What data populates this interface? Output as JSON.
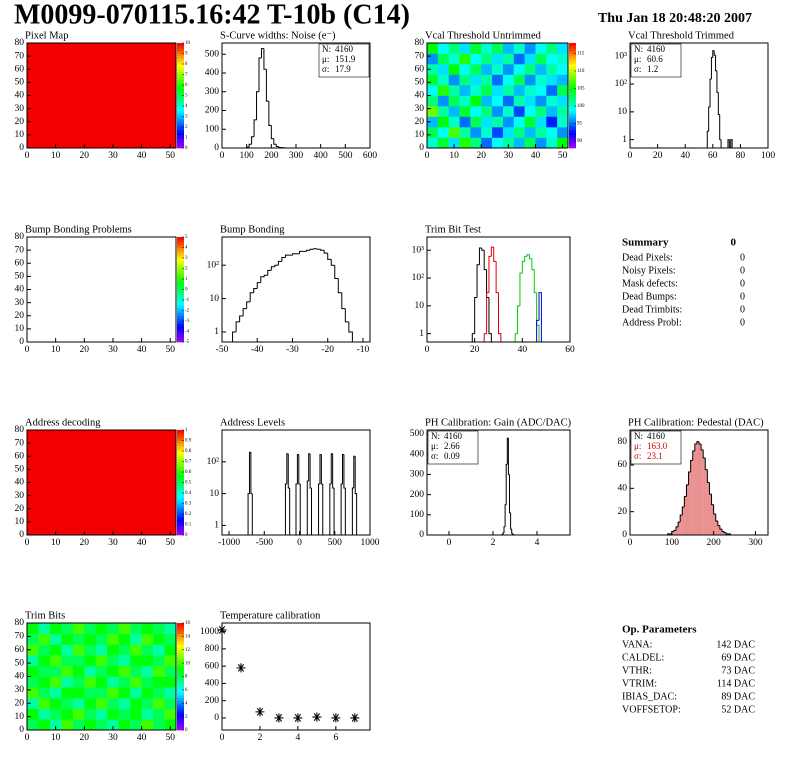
{
  "header": {
    "title": "M0099-070115.16:42 T-10b (C14)",
    "date": "Thu Jan 18 20:48:20 2007"
  },
  "chart_data": [
    {
      "type": "heatmap",
      "title": "Pixel Map",
      "xlim": [
        0,
        52
      ],
      "ylim": [
        0,
        80
      ],
      "xticks": [
        0,
        10,
        20,
        30,
        40,
        50
      ],
      "yticks": [
        0,
        10,
        20,
        30,
        40,
        50,
        60,
        70,
        80
      ],
      "z": [
        [
          10
        ]
      ],
      "zlim": [
        0,
        10
      ],
      "zticks": [
        0,
        1,
        2,
        3,
        4,
        5,
        6,
        7,
        8,
        9,
        10
      ]
    },
    {
      "type": "histogram",
      "title": "S-Curve widths: Noise (e⁻)",
      "xlim": [
        0,
        600
      ],
      "ylim": [
        0,
        560
      ],
      "xticks": [
        0,
        100,
        200,
        300,
        400,
        500,
        600
      ],
      "yticks": [
        0,
        100,
        200,
        300,
        400,
        500
      ],
      "stats_corner": "top-right",
      "stats": [
        {
          "name": "N:",
          "value": 4160
        },
        {
          "name": "μ:",
          "value": 151.9
        },
        {
          "name": "σ:",
          "value": 17.9
        }
      ],
      "series": [
        {
          "color": "#000000",
          "bins": [
            100,
            110,
            120,
            130,
            140,
            150,
            160,
            170,
            180,
            190,
            200,
            210,
            220,
            230,
            240,
            250,
            260
          ],
          "values": [
            5,
            20,
            60,
            150,
            300,
            480,
            530,
            420,
            250,
            120,
            50,
            20,
            8,
            3,
            2,
            1
          ]
        }
      ]
    },
    {
      "type": "heatmap",
      "title": "Vcal Threshold Untrimmed",
      "xlim": [
        0,
        52
      ],
      "ylim": [
        0,
        80
      ],
      "xticks": [
        0,
        10,
        20,
        30,
        40,
        50
      ],
      "yticks": [
        0,
        10,
        20,
        30,
        40,
        50,
        60,
        70,
        80
      ],
      "zlim": [
        88,
        118
      ],
      "zticks": [
        90,
        95,
        100,
        105,
        110,
        115
      ],
      "z": [
        [
          100,
          104,
          98,
          106,
          102,
          95,
          99,
          101,
          97,
          103,
          96,
          100,
          105
        ],
        [
          103,
          99,
          107,
          101,
          96,
          100,
          94,
          98,
          102,
          97,
          101,
          99,
          96
        ],
        [
          97,
          105,
          100,
          95,
          103,
          98,
          101,
          96,
          99,
          104,
          98,
          93,
          100
        ],
        [
          108,
          101,
          97,
          104,
          99,
          102,
          96,
          100,
          94,
          99,
          102,
          97,
          101
        ],
        [
          102,
          96,
          103,
          100,
          105,
          97,
          99,
          95,
          101,
          98,
          96,
          100,
          98
        ],
        [
          99,
          106,
          101,
          97,
          100,
          103,
          98,
          101,
          97,
          100,
          99,
          95,
          103
        ],
        [
          104,
          100,
          96,
          102,
          98,
          101,
          95,
          99,
          103,
          96,
          100,
          98,
          97
        ],
        [
          101,
          98,
          105,
          99,
          103,
          97,
          100,
          96,
          99,
          102,
          97,
          101,
          99
        ],
        [
          96,
          103,
          100,
          106,
          99,
          102,
          98,
          101,
          95,
          98,
          103,
          99,
          100
        ],
        [
          105,
          99,
          102,
          98,
          104,
          100,
          103,
          97,
          100,
          96,
          99,
          102,
          98
        ]
      ]
    },
    {
      "type": "histogram",
      "title": "Vcal Threshold Trimmed",
      "xlim": [
        0,
        100
      ],
      "ylim": [
        0.5,
        3000
      ],
      "ylog": true,
      "xticks": [
        0,
        20,
        40,
        60,
        80,
        100
      ],
      "yticks": [
        1,
        10,
        {
          "value": 100,
          "label": "10²"
        },
        {
          "value": 1000,
          "label": "10³"
        }
      ],
      "stats_corner": "top-left",
      "stats": [
        {
          "name": "N:",
          "value": 4160
        },
        {
          "name": "μ:",
          "value": 60.6
        },
        {
          "name": "σ:",
          "value": 1.2
        }
      ],
      "series": [
        {
          "color": "#000000",
          "bins": [
            56,
            57,
            58,
            59,
            60,
            61,
            62,
            63,
            64,
            65,
            66,
            67,
            68,
            69,
            70,
            71,
            72,
            73,
            74
          ],
          "values": [
            2,
            15,
            150,
            900,
            1600,
            1100,
            300,
            50,
            8,
            1,
            0,
            0,
            0,
            0,
            0,
            1,
            0,
            1
          ]
        }
      ]
    },
    {
      "type": "heatmap",
      "title": "Bump Bonding Problems",
      "xlim": [
        0,
        52
      ],
      "ylim": [
        0,
        80
      ],
      "xticks": [
        0,
        10,
        20,
        30,
        40,
        50
      ],
      "yticks": [
        0,
        10,
        20,
        30,
        40,
        50,
        60,
        70,
        80
      ],
      "z": [],
      "zlim": [
        -5,
        5
      ],
      "zticks": [
        -5,
        -4,
        -3,
        -2,
        -1,
        0,
        1,
        2,
        3,
        4,
        5
      ]
    },
    {
      "type": "histogram",
      "title": "Bump Bonding",
      "xlim": [
        -50,
        -8
      ],
      "ylim": [
        0.5,
        700
      ],
      "ylog": true,
      "xticks": [
        -50,
        -40,
        -30,
        -20,
        -10
      ],
      "yticks": [
        1,
        10,
        {
          "value": 100,
          "label": "10²"
        }
      ],
      "series": [
        {
          "color": "#000000",
          "bins": [
            -47,
            -46,
            -45,
            -44,
            -43,
            -42,
            -41,
            -40,
            -39,
            -38,
            -37,
            -36,
            -35,
            -34,
            -33,
            -32,
            -31,
            -30,
            -29,
            -28,
            -27,
            -26,
            -25,
            -24,
            -23,
            -22,
            -21,
            -20,
            -19,
            -18,
            -17,
            -16,
            -15,
            -14,
            -13
          ],
          "values": [
            1,
            2,
            3,
            5,
            8,
            15,
            20,
            30,
            45,
            50,
            70,
            90,
            100,
            130,
            170,
            200,
            200,
            220,
            220,
            260,
            260,
            280,
            300,
            310,
            300,
            280,
            230,
            150,
            100,
            40,
            15,
            5,
            2,
            1
          ]
        }
      ]
    },
    {
      "type": "histogram",
      "title": "Trim Bit Test",
      "xlim": [
        0,
        60
      ],
      "ylim": [
        0.5,
        3000
      ],
      "ylog": true,
      "xticks": [
        0,
        20,
        40,
        60
      ],
      "yticks": [
        1,
        10,
        {
          "value": 100,
          "label": "10²"
        },
        {
          "value": 1000,
          "label": "10³"
        }
      ],
      "series": [
        {
          "color": "#000000",
          "bins": [
            19,
            20,
            21,
            22,
            23,
            24,
            25,
            26,
            27
          ],
          "values": [
            1,
            20,
            300,
            1200,
            1000,
            200,
            20,
            1
          ]
        },
        {
          "color": "#dd0000",
          "bins": [
            24,
            25,
            26,
            27,
            28,
            29,
            30,
            31
          ],
          "values": [
            1,
            30,
            600,
            1300,
            400,
            30,
            1
          ]
        },
        {
          "color": "#00cc00",
          "bins": [
            37,
            38,
            39,
            40,
            41,
            42,
            43,
            44,
            45,
            46,
            47
          ],
          "values": [
            1,
            10,
            150,
            400,
            600,
            700,
            500,
            200,
            30,
            2
          ]
        },
        {
          "color": "#0000dd",
          "bins": [
            46,
            47,
            48
          ],
          "values": [
            3,
            30
          ]
        }
      ]
    },
    {
      "type": "heatmap",
      "title": "Address decoding",
      "xlim": [
        0,
        52
      ],
      "ylim": [
        0,
        80
      ],
      "xticks": [
        0,
        10,
        20,
        30,
        40,
        50
      ],
      "yticks": [
        0,
        10,
        20,
        30,
        40,
        50,
        60,
        70,
        80
      ],
      "z": [
        [
          1
        ]
      ],
      "zlim": [
        0,
        1
      ],
      "zticks": [
        0,
        0.1,
        0.2,
        0.3,
        0.4,
        0.5,
        0.6,
        0.7,
        0.8,
        0.9,
        1
      ]
    },
    {
      "type": "histogram",
      "title": "Address Levels",
      "xlim": [
        -1100,
        1000
      ],
      "ylim": [
        0.5,
        1000
      ],
      "ylog": true,
      "xticks": [
        -1000,
        -500,
        0,
        500,
        1000
      ],
      "yticks": [
        1,
        10,
        {
          "value": 100,
          "label": "10²"
        }
      ],
      "series": [
        {
          "color": "#000000",
          "bins": [
            -730,
            -710,
            -690,
            -670,
            -200,
            -180,
            -160,
            -140,
            -50,
            -30,
            -10,
            10,
            110,
            130,
            150,
            170,
            270,
            290,
            310,
            330,
            430,
            450,
            470,
            490,
            590,
            610,
            630,
            650,
            750,
            770,
            790,
            810
          ],
          "values": [
            10,
            200,
            10,
            0,
            20,
            180,
            15,
            0,
            20,
            170,
            20,
            0,
            25,
            180,
            15,
            0,
            20,
            170,
            20,
            0,
            20,
            180,
            15,
            0,
            20,
            170,
            15,
            0,
            15,
            150,
            10
          ]
        }
      ]
    },
    {
      "type": "histogram",
      "title": "PH Calibration: Gain (ADC/DAC)",
      "xlim": [
        -1,
        5.5
      ],
      "ylim": [
        0,
        520
      ],
      "xticks": [
        0,
        2,
        4
      ],
      "yticks": [
        0,
        100,
        200,
        300,
        400,
        500
      ],
      "stats_corner": "top-left",
      "stats": [
        {
          "name": "N:",
          "value": 4160
        },
        {
          "name": "μ:",
          "value": 2.66
        },
        {
          "name": "σ:",
          "value": 0.09
        }
      ],
      "series": [
        {
          "color": "#000000",
          "bins": [
            2.4,
            2.45,
            2.5,
            2.55,
            2.6,
            2.65,
            2.7,
            2.75,
            2.8,
            2.85,
            2.9,
            2.95
          ],
          "values": [
            2,
            10,
            40,
            150,
            350,
            480,
            300,
            110,
            30,
            8,
            2
          ]
        }
      ]
    },
    {
      "type": "histogram",
      "title": "PH Calibration: Pedestal (DAC)",
      "xlim": [
        0,
        330
      ],
      "ylim": [
        0,
        90
      ],
      "xticks": [
        0,
        100,
        200,
        300
      ],
      "yticks": [
        0,
        20,
        40,
        60,
        80
      ],
      "stats_corner": "top-left",
      "stats": [
        {
          "name": "N:",
          "value": 4160
        },
        {
          "name": "μ:",
          "value": 163,
          "label": "163.0",
          "color": "#cc0000"
        },
        {
          "name": "σ:",
          "value": 23.1,
          "color": "#cc0000"
        }
      ],
      "series": [
        {
          "color": "#000000",
          "fill": "#e06060",
          "bins": [
            90,
            95,
            100,
            105,
            110,
            115,
            120,
            125,
            130,
            135,
            140,
            145,
            150,
            155,
            160,
            165,
            170,
            175,
            180,
            185,
            190,
            195,
            200,
            205,
            210,
            215,
            220,
            225,
            230,
            235,
            240
          ],
          "values": [
            1,
            1,
            3,
            4,
            7,
            11,
            17,
            24,
            33,
            43,
            54,
            64,
            72,
            78,
            80,
            78,
            73,
            66,
            56,
            45,
            35,
            26,
            18,
            12,
            8,
            5,
            3,
            2,
            1,
            1
          ]
        }
      ]
    },
    {
      "type": "heatmap",
      "title": "Trim Bits",
      "xlim": [
        0,
        52
      ],
      "ylim": [
        0,
        80
      ],
      "xticks": [
        0,
        10,
        20,
        30,
        40,
        50
      ],
      "yticks": [
        0,
        10,
        20,
        30,
        40,
        50,
        60,
        70,
        80
      ],
      "zlim": [
        0,
        16
      ],
      "zticks": [
        0,
        2,
        4,
        6,
        8,
        10,
        12,
        14,
        16
      ],
      "z": [
        [
          8,
          9,
          7,
          10,
          8,
          9,
          8,
          7,
          9,
          8,
          10,
          8,
          9
        ],
        [
          9,
          7,
          8,
          9,
          10,
          8,
          7,
          9,
          8,
          9,
          7,
          8,
          10
        ],
        [
          7,
          10,
          9,
          8,
          7,
          9,
          10,
          8,
          7,
          9,
          8,
          10,
          8
        ],
        [
          10,
          8,
          7,
          9,
          9,
          8,
          8,
          10,
          9,
          7,
          9,
          8,
          7
        ],
        [
          8,
          9,
          10,
          7,
          8,
          10,
          9,
          7,
          8,
          10,
          8,
          9,
          9
        ],
        [
          9,
          8,
          8,
          10,
          9,
          7,
          8,
          9,
          10,
          8,
          7,
          10,
          8
        ],
        [
          7,
          9,
          10,
          8,
          8,
          9,
          10,
          8,
          7,
          9,
          9,
          8,
          10
        ],
        [
          10,
          8,
          9,
          7,
          10,
          8,
          7,
          9,
          8,
          10,
          8,
          7,
          9
        ],
        [
          8,
          10,
          7,
          9,
          8,
          9,
          8,
          10,
          9,
          7,
          10,
          9,
          8
        ],
        [
          9,
          7,
          9,
          8,
          10,
          8,
          9,
          8,
          10,
          8,
          9,
          8,
          7
        ]
      ]
    },
    {
      "type": "scatter",
      "title": "Temperature calibration",
      "xlim": [
        0,
        7.8
      ],
      "ylim": [
        -140,
        1100
      ],
      "xticks": [
        0,
        2,
        4,
        6
      ],
      "yticks": [
        0,
        200,
        400,
        600,
        800,
        1000
      ],
      "color": "#000000",
      "x": [
        0,
        1,
        2,
        3,
        4,
        5,
        6,
        7
      ],
      "values": [
        1020,
        580,
        70,
        0,
        0,
        10,
        0,
        0
      ]
    }
  ],
  "summary": {
    "title": "Summary",
    "total": 0,
    "rows": [
      {
        "label": "Dead Pixels:",
        "value": 0
      },
      {
        "label": "Noisy Pixels:",
        "value": 0
      },
      {
        "label": "Mask defects:",
        "value": 0
      },
      {
        "label": "Dead Bumps:",
        "value": 0
      },
      {
        "label": "Dead Trimbits:",
        "value": 0
      },
      {
        "label": "Address Probl:",
        "value": 0
      }
    ]
  },
  "op_parameters": {
    "title": "Op. Parameters",
    "rows": [
      {
        "label": "VANA:",
        "value": "142 DAC"
      },
      {
        "label": "CALDEL:",
        "value": "69 DAC"
      },
      {
        "label": "VTHR:",
        "value": "73 DAC"
      },
      {
        "label": "VTRIM:",
        "value": "114 DAC"
      },
      {
        "label": "IBIAS_DAC:",
        "value": "89 DAC"
      },
      {
        "label": "VOFFSETOP:",
        "value": "52 DAC"
      }
    ]
  }
}
